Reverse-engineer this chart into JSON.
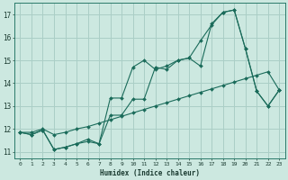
{
  "xlabel": "Humidex (Indice chaleur)",
  "bg_color": "#cce8e0",
  "grid_color": "#aacec6",
  "line_color": "#1a6b5a",
  "xlim": [
    -0.5,
    23.5
  ],
  "ylim": [
    10.7,
    17.5
  ],
  "xticks": [
    0,
    1,
    2,
    3,
    4,
    5,
    6,
    7,
    8,
    9,
    10,
    11,
    12,
    13,
    14,
    15,
    16,
    17,
    18,
    19,
    20,
    21,
    22,
    23
  ],
  "yticks": [
    11,
    12,
    13,
    14,
    15,
    16,
    17
  ],
  "series1_x": [
    0,
    1,
    2,
    3,
    4,
    5,
    6,
    7,
    8,
    9,
    10,
    11,
    12,
    13,
    14,
    15,
    16,
    17,
    18,
    19,
    20,
    21,
    22,
    23
  ],
  "series1_y": [
    11.85,
    11.75,
    11.95,
    11.1,
    11.2,
    11.35,
    11.45,
    11.35,
    12.6,
    12.6,
    13.3,
    13.3,
    14.7,
    14.6,
    15.0,
    15.1,
    14.75,
    16.6,
    17.1,
    17.2,
    15.5,
    13.65,
    13.0,
    13.7
  ],
  "series2_x": [
    0,
    1,
    2,
    3,
    4,
    5,
    6,
    7,
    8,
    9,
    10,
    11,
    12,
    13,
    14,
    15,
    16,
    17,
    18,
    19,
    20,
    21,
    22,
    23
  ],
  "series2_y": [
    11.85,
    11.75,
    11.95,
    11.1,
    11.2,
    11.35,
    11.55,
    11.35,
    13.35,
    13.35,
    14.7,
    15.0,
    14.6,
    14.75,
    15.0,
    15.1,
    15.85,
    16.55,
    17.1,
    17.2,
    15.5,
    13.65,
    13.0,
    13.7
  ],
  "series3_x": [
    0,
    1,
    2,
    3,
    4,
    5,
    6,
    7,
    8,
    9,
    10,
    11,
    12,
    13,
    14,
    15,
    16,
    17,
    18,
    19,
    20,
    21,
    22,
    23
  ],
  "series3_y": [
    11.85,
    11.85,
    12.0,
    11.75,
    11.85,
    12.0,
    12.1,
    12.25,
    12.4,
    12.55,
    12.7,
    12.85,
    13.0,
    13.15,
    13.3,
    13.45,
    13.6,
    13.75,
    13.9,
    14.05,
    14.2,
    14.35,
    14.5,
    13.7
  ]
}
